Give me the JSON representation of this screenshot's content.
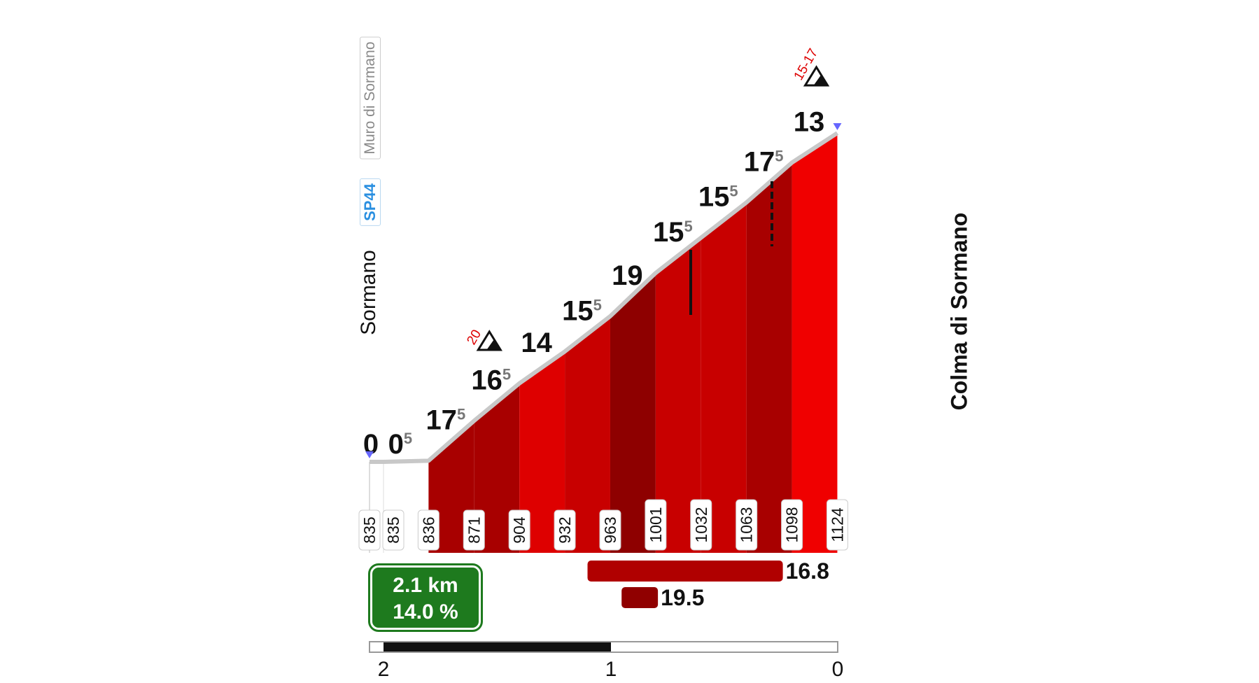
{
  "chart_data": {
    "type": "area",
    "title": "",
    "xlabel": "",
    "ylabel": "",
    "start_name": "Sormano",
    "road_tag": "SP44",
    "climb_name": "Muro di Sormano",
    "finish_name": "Colma di Sormano",
    "km": [
      0,
      0.06,
      0.26,
      0.46,
      0.66,
      0.86,
      1.06,
      1.26,
      1.46,
      1.66,
      1.86,
      2.06
    ],
    "altitudes": [
      835,
      835,
      836,
      871,
      904,
      932,
      963,
      1001,
      1032,
      1063,
      1098,
      1124
    ],
    "gradients": [
      0,
      0.5,
      17.5,
      16.5,
      14,
      15.5,
      19,
      15.5,
      15.5,
      17.5,
      13
    ],
    "max_gradient_markers": [
      {
        "label": "20",
        "km": 0.46
      },
      {
        "label": "15-17",
        "km": 1.9
      }
    ],
    "summary": {
      "distance": "2.1 km",
      "avg_gradient": "14.0 %"
    },
    "steepest_sections": [
      {
        "value": "16.8",
        "from_km": 0.96,
        "to_km": 1.82
      },
      {
        "value": "19.5",
        "from_km": 1.11,
        "to_km": 1.27
      }
    ],
    "distance_scale": {
      "ticks": [
        "2",
        "1",
        "0"
      ]
    },
    "colors": {
      "finish_flag": "#6666ff",
      "summary_box": "#1e7a1e",
      "road_tag": "#2a8fe0",
      "profile_line": "#c8c8c8"
    }
  }
}
